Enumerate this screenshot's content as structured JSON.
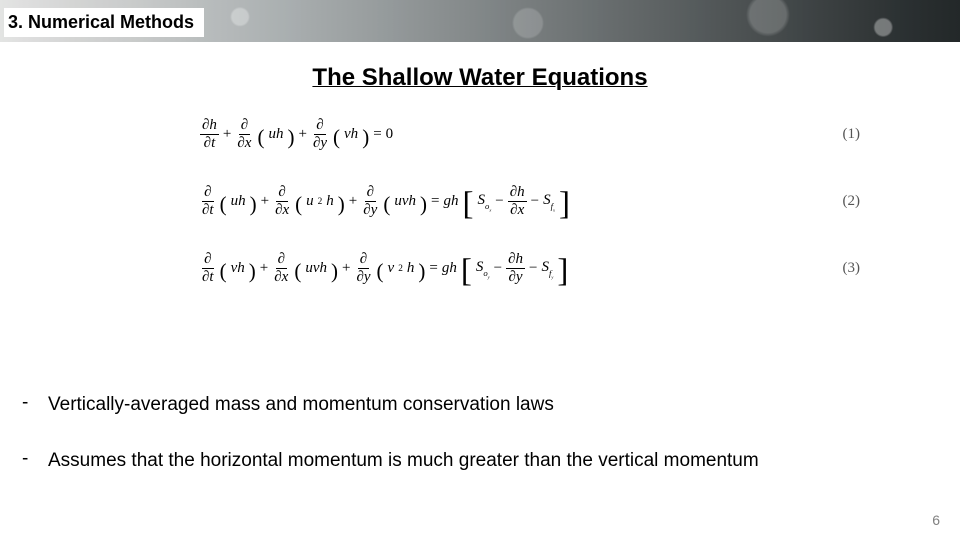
{
  "header": {
    "section_label": "3. Numerical Methods",
    "section_fontsize": 18
  },
  "title": {
    "text": "The Shallow Water Equations",
    "fontsize": 24
  },
  "equations": {
    "fontsize": 15,
    "rows": [
      {
        "number_label": "(1)"
      },
      {
        "number_label": "(2)"
      },
      {
        "number_label": "(3)"
      }
    ],
    "number_color": "#555555",
    "partial_glyph": "∂",
    "vars": {
      "h": "h",
      "u": "u",
      "v": "v",
      "t": "t",
      "x": "x",
      "y": "y",
      "g": "g",
      "S": "S",
      "o": "o",
      "f": "f"
    },
    "eq1": {
      "t1_num": "∂h",
      "t1_den": "∂t",
      "t2_frac_num": "∂",
      "t2_frac_den": "∂x",
      "t2_group": "uh",
      "t3_frac_num": "∂",
      "t3_frac_den": "∂y",
      "t3_group": "vh",
      "rhs": "0"
    },
    "eq2": {
      "t1_frac_num": "∂",
      "t1_frac_den": "∂t",
      "t1_group": "uh",
      "t2_frac_num": "∂",
      "t2_frac_den": "∂x",
      "t2_group_a": "u",
      "t2_group_exp": "2",
      "t2_group_b": "h",
      "t3_frac_num": "∂",
      "t3_frac_den": "∂y",
      "t3_group": "uvh",
      "rhs_lead": "gh",
      "rhs_S1": "S",
      "rhs_S1a": "o",
      "rhs_S1b": "x",
      "rhs_frac_num": "∂h",
      "rhs_frac_den": "∂x",
      "rhs_S2": "S",
      "rhs_S2a": "f",
      "rhs_S2b": "x"
    },
    "eq3": {
      "t1_frac_num": "∂",
      "t1_frac_den": "∂t",
      "t1_group": "vh",
      "t2_frac_num": "∂",
      "t2_frac_den": "∂x",
      "t2_group": "uvh",
      "t3_frac_num": "∂",
      "t3_frac_den": "∂y",
      "t3_group_a": "v",
      "t3_group_exp": "2",
      "t3_group_b": "h",
      "rhs_lead": "gh",
      "rhs_S1": "S",
      "rhs_S1a": "o",
      "rhs_S1b": "y",
      "rhs_frac_num": "∂h",
      "rhs_frac_den": "∂y",
      "rhs_S2": "S",
      "rhs_S2a": "f",
      "rhs_S2b": "y"
    }
  },
  "bullets": {
    "fontsize": 19,
    "items": [
      "Vertically-averaged mass and momentum conservation laws",
      "Assumes that the horizontal momentum is much greater than the vertical momentum"
    ]
  },
  "page_number": "6",
  "colors": {
    "background": "#ffffff",
    "text": "#000000",
    "page_number": "#808080"
  }
}
